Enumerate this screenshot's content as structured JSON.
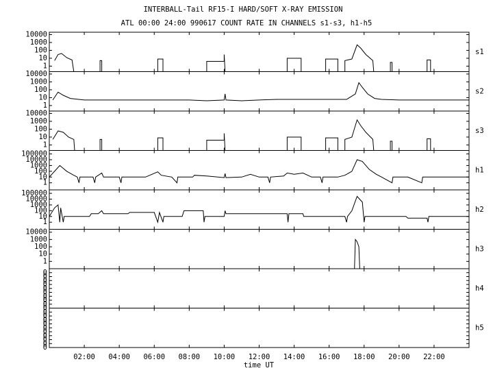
{
  "chart_data": [
    {
      "type": "line",
      "title": "INTERBALL-Tail RF15-I HARD/SOFT X-RAY EMISSION",
      "subtitle": "ATL 00:00 24:00 990617  COUNT RATE IN CHANNELS s1-s3, h1-h5",
      "label": "s1",
      "log": true,
      "color": "#000000",
      "xlim": [
        0,
        24
      ],
      "ylim": [
        0.2,
        20000
      ],
      "yticks": [
        1,
        10,
        100,
        1000,
        10000
      ],
      "x": [
        0.3,
        0.5,
        0.7,
        1.0,
        1.3,
        1.4,
        null,
        2.9,
        2.9,
        3.0,
        3.0,
        null,
        6.2,
        6.2,
        6.5,
        6.5,
        null,
        9.0,
        9.0,
        10.0,
        10.0,
        10.05,
        null,
        13.6,
        13.6,
        14.4,
        14.4,
        null,
        15.8,
        15.8,
        16.5,
        16.5,
        null,
        16.9,
        16.9,
        17.3,
        17.6,
        17.8,
        18.1,
        18.5,
        18.55,
        null,
        19.5,
        19.5,
        19.6,
        19.6,
        null,
        21.6,
        21.6,
        21.8,
        21.8
      ],
      "values": [
        5,
        30,
        40,
        12,
        6,
        0.2,
        null,
        0.2,
        5,
        5,
        0.2,
        null,
        0.2,
        8,
        8,
        0.2,
        null,
        0.2,
        4,
        4,
        30,
        0.2,
        null,
        0.2,
        10,
        10,
        0.2,
        null,
        0.2,
        8,
        8,
        0.2,
        null,
        0.2,
        5,
        8,
        500,
        200,
        30,
        5,
        0.2,
        null,
        0.2,
        3,
        3,
        0.2,
        null,
        0.2,
        6,
        6,
        0.2
      ]
    },
    {
      "type": "line",
      "label": "s2",
      "log": true,
      "color": "#000000",
      "xlim": [
        0,
        24
      ],
      "ylim": [
        0.2,
        20000
      ],
      "yticks": [
        1,
        10,
        100,
        1000,
        10000
      ],
      "x": [
        0.2,
        0.5,
        0.8,
        1.2,
        2,
        4,
        6,
        8,
        9,
        10,
        10.05,
        10.1,
        11,
        12,
        13,
        14,
        15,
        16,
        17,
        17.5,
        17.7,
        17.9,
        18.2,
        18.6,
        19,
        20,
        22,
        24
      ],
      "values": [
        5,
        50,
        20,
        8,
        5,
        5,
        5,
        5,
        4,
        5,
        30,
        5,
        4,
        5,
        6,
        6,
        6,
        6,
        6,
        30,
        800,
        200,
        30,
        8,
        6,
        5,
        5,
        5
      ]
    },
    {
      "type": "line",
      "label": "s3",
      "log": true,
      "color": "#000000",
      "xlim": [
        0,
        24
      ],
      "ylim": [
        0.2,
        20000
      ],
      "yticks": [
        1,
        10,
        100,
        1000,
        10000
      ],
      "x": [
        0.2,
        0.5,
        0.8,
        1.1,
        1.4,
        1.45,
        null,
        2.9,
        2.9,
        3.0,
        3.0,
        null,
        6.2,
        6.2,
        6.5,
        6.5,
        null,
        9.0,
        9.0,
        10.0,
        10.0,
        10.05,
        null,
        13.6,
        13.6,
        14.4,
        14.4,
        null,
        15.8,
        15.8,
        16.5,
        16.5,
        null,
        16.9,
        16.9,
        17.3,
        17.6,
        17.8,
        18.1,
        18.5,
        18.55,
        null,
        19.5,
        19.5,
        19.6,
        19.6,
        null,
        21.6,
        21.6,
        21.8,
        21.8
      ],
      "values": [
        5,
        60,
        40,
        10,
        5,
        0.2,
        null,
        0.2,
        5,
        5,
        0.2,
        null,
        0.2,
        8,
        8,
        0.2,
        null,
        0.2,
        4,
        4,
        30,
        0.2,
        null,
        0.2,
        10,
        10,
        0.2,
        null,
        0.2,
        8,
        8,
        0.2,
        null,
        0.2,
        5,
        10,
        1500,
        300,
        40,
        5,
        0.2,
        null,
        0.2,
        3,
        3,
        0.2,
        null,
        0.2,
        6,
        6,
        0.2
      ]
    },
    {
      "type": "line",
      "label": "h1",
      "log": true,
      "color": "#000000",
      "xlim": [
        0,
        24
      ],
      "ylim": [
        0.06,
        400000
      ],
      "yticks": [
        1,
        10,
        100,
        1000,
        10000,
        100000
      ],
      "x": [
        0,
        0.3,
        0.6,
        1.0,
        1.4,
        1.6,
        1.7,
        1.75,
        2.5,
        2.6,
        2.65,
        3.0,
        3.1,
        4.0,
        4.1,
        4.15,
        5.5,
        6.2,
        6.4,
        7,
        7.3,
        7.35,
        8.2,
        8.3,
        9,
        10,
        10.05,
        10.1,
        11,
        11.5,
        12,
        12.5,
        12.6,
        12.65,
        13.4,
        13.6,
        14.0,
        14.5,
        15,
        15.5,
        15.6,
        15.65,
        16.5,
        16.9,
        17.3,
        17.6,
        17.9,
        18.3,
        18.7,
        19,
        19.6,
        19.65,
        20.5,
        21.3,
        21.35,
        22,
        23,
        24
      ],
      "values": [
        10,
        100,
        1000,
        100,
        20,
        10,
        1,
        10,
        10,
        1,
        10,
        50,
        10,
        10,
        1,
        10,
        10,
        80,
        20,
        10,
        1,
        10,
        10,
        20,
        15,
        8,
        40,
        8,
        10,
        30,
        10,
        10,
        1,
        10,
        15,
        50,
        30,
        50,
        10,
        10,
        1,
        10,
        10,
        20,
        100,
        10000,
        5000,
        200,
        30,
        10,
        1,
        10,
        10,
        1,
        10,
        10,
        10,
        10
      ]
    },
    {
      "type": "line",
      "label": "h2",
      "log": true,
      "color": "#000000",
      "xlim": [
        0,
        24
      ],
      "ylim": [
        0.06,
        400000
      ],
      "yticks": [
        1,
        10,
        100,
        1000,
        10000,
        100000
      ],
      "x": [
        0,
        0.3,
        0.5,
        0.6,
        0.65,
        0.8,
        0.85,
        2.3,
        2.4,
        2.8,
        3.0,
        3.1,
        4.5,
        4.6,
        6.0,
        6.2,
        6.3,
        6.5,
        6.55,
        7.6,
        7.7,
        8.8,
        8.85,
        8.9,
        10.0,
        10.05,
        10.1,
        13.6,
        13.65,
        13.7,
        14.5,
        14.55,
        16.9,
        17.0,
        17.05,
        17.3,
        17.6,
        17.9,
        18.0,
        18.05,
        20.4,
        20.5,
        21.6,
        21.65,
        21.7,
        24
      ],
      "values": [
        10,
        300,
        1000,
        1,
        300,
        1,
        10,
        10,
        30,
        30,
        100,
        30,
        30,
        50,
        50,
        1,
        50,
        1,
        10,
        10,
        100,
        100,
        1,
        10,
        10,
        100,
        30,
        30,
        1,
        30,
        30,
        10,
        10,
        1,
        10,
        100,
        30000,
        3000,
        1,
        10,
        10,
        5,
        5,
        1,
        10,
        10
      ]
    },
    {
      "type": "line",
      "label": "h3",
      "log": true,
      "color": "#000000",
      "xlim": [
        0,
        24
      ],
      "ylim": [
        0.1,
        25000
      ],
      "yticks": [
        1,
        10,
        100,
        1000,
        10000
      ],
      "x": [
        17.45,
        17.5,
        17.6,
        17.7,
        17.75
      ],
      "values": [
        0.1,
        1000,
        500,
        100,
        0.1
      ]
    },
    {
      "type": "line",
      "label": "h4",
      "log": false,
      "xlim": [
        0,
        24
      ],
      "ylim": [
        0,
        0.4
      ],
      "yticks": [
        0,
        {
          "value": 0.04,
          "label": "0"
        },
        {
          "value": 0.08,
          "label": "0"
        },
        {
          "value": 0.12,
          "label": "0"
        },
        {
          "value": 0.16,
          "label": "0"
        },
        {
          "value": 0.2,
          "label": "0"
        },
        {
          "value": 0.24,
          "label": "0"
        },
        {
          "value": 0.28,
          "label": "0"
        },
        {
          "value": 0.32,
          "label": "0"
        },
        {
          "value": 0.36,
          "label": "0"
        }
      ]
    },
    {
      "type": "line",
      "label": "h5",
      "log": false,
      "xlabel": "time UT",
      "xlim": [
        0,
        24
      ],
      "ylim": [
        0,
        0.4
      ],
      "yticks": [
        0,
        {
          "value": 0.04,
          "label": "0"
        },
        {
          "value": 0.08,
          "label": "0"
        },
        {
          "value": 0.12,
          "label": "0"
        },
        {
          "value": 0.16,
          "label": "0"
        },
        {
          "value": 0.2,
          "label": "0"
        },
        {
          "value": 0.24,
          "label": "0"
        },
        {
          "value": 0.28,
          "label": "0"
        },
        {
          "value": 0.32,
          "label": "0"
        },
        {
          "value": 0.36,
          "label": "0"
        }
      ],
      "xticks": [
        {
          "value": 2,
          "label": "02:00"
        },
        {
          "value": 4,
          "label": "04:00"
        },
        {
          "value": 6,
          "label": "06:00"
        },
        {
          "value": 8,
          "label": "08:00"
        },
        {
          "value": 10,
          "label": "10:00"
        },
        {
          "value": 12,
          "label": "12:00"
        },
        {
          "value": 14,
          "label": "14:00"
        },
        {
          "value": 16,
          "label": "16:00"
        },
        {
          "value": 18,
          "label": "18:00"
        },
        {
          "value": 20,
          "label": "20:00"
        },
        {
          "value": 22,
          "label": "22:00"
        }
      ]
    }
  ]
}
